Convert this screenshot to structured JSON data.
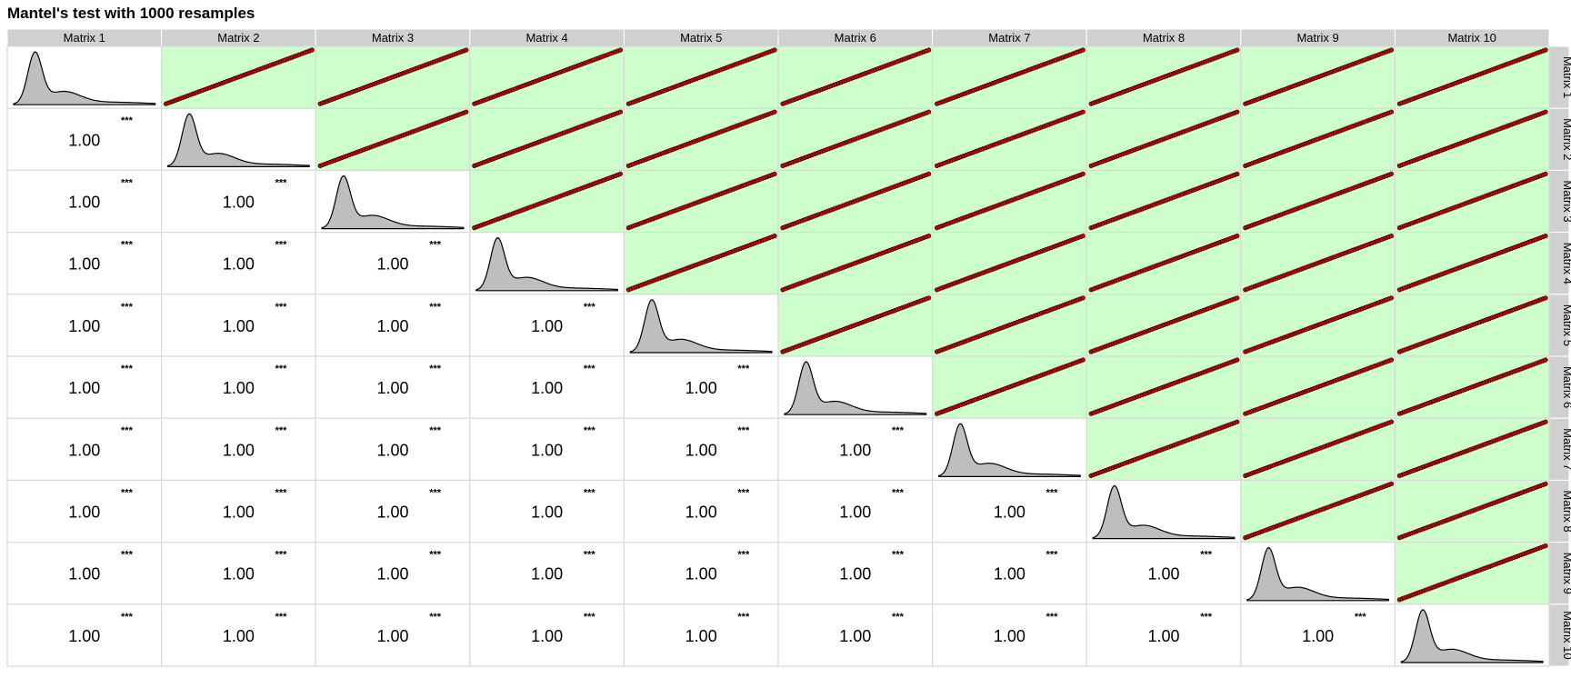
{
  "chart_data": {
    "type": "pairs-matrix",
    "title": "Mantel's test with 1000 resamples",
    "labels": [
      "Matrix 1",
      "Matrix 2",
      "Matrix 3",
      "Matrix 4",
      "Matrix 5",
      "Matrix 6",
      "Matrix 7",
      "Matrix 8",
      "Matrix 9",
      "Matrix 10"
    ],
    "lower_panel": "correlation",
    "upper_panel": "scatter",
    "diagonal_panel": "density",
    "correlation_value": "1.00",
    "significance": "***",
    "colors": {
      "strip_background": "#d0d0d0",
      "upper_background": "#ccffcc",
      "point_fill": "#cc0000",
      "density_fill": "#bebebe"
    }
  }
}
